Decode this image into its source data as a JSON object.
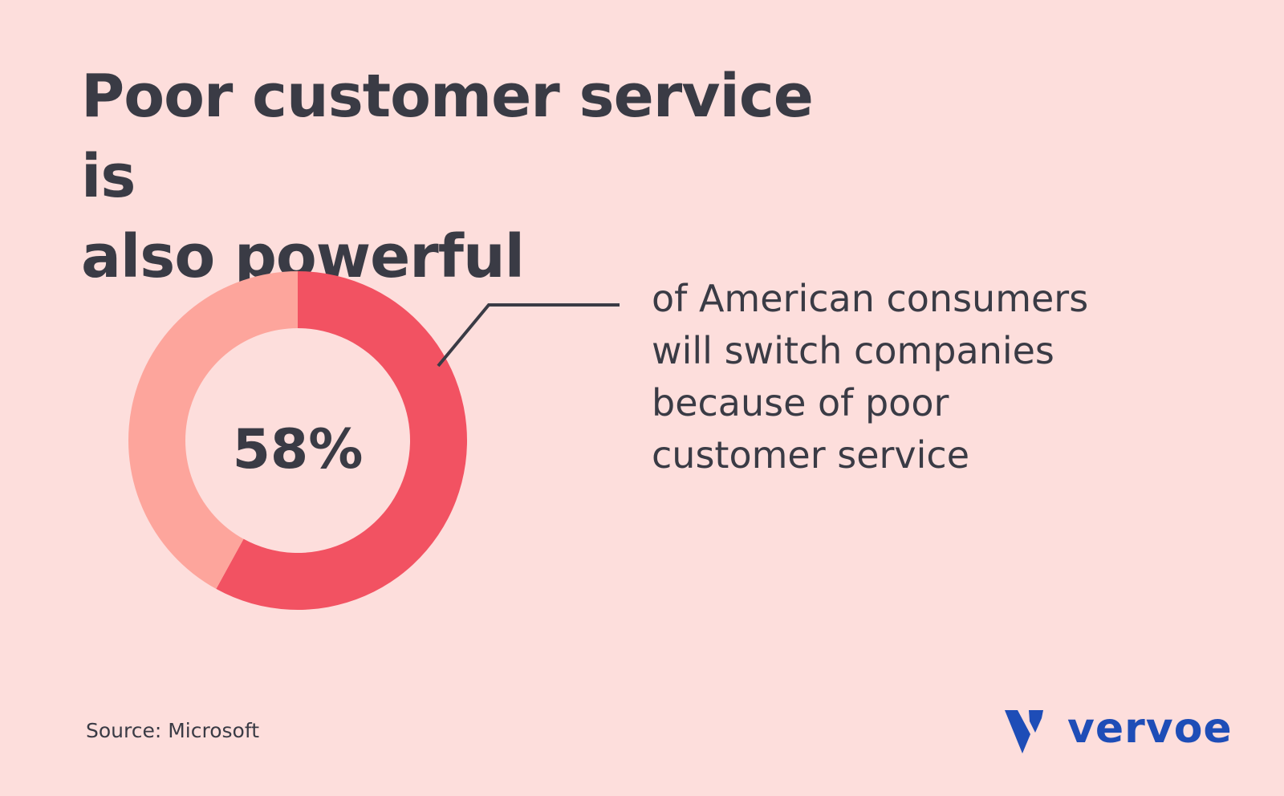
{
  "title": {
    "line1": "Poor customer service is",
    "line2": "also powerful"
  },
  "chart_data": {
    "type": "pie",
    "variant": "donut",
    "slices": [
      {
        "label": "will switch companies",
        "value": 58,
        "color": "#F25262"
      },
      {
        "label": "other",
        "value": 42,
        "color": "#FDA59C"
      }
    ],
    "center_label": "58%"
  },
  "description": [
    "of American consumers",
    "will switch companies",
    "because of poor",
    "customer service"
  ],
  "source": "Source: Microsoft",
  "brand": {
    "name": "vervoe",
    "icon": "vervoe-v-logo-icon",
    "color": "#1E4DB7"
  },
  "colors": {
    "background": "#FDDEDC",
    "text": "#3A3B45",
    "accent": "#F25262",
    "accent_light": "#FDA59C"
  }
}
